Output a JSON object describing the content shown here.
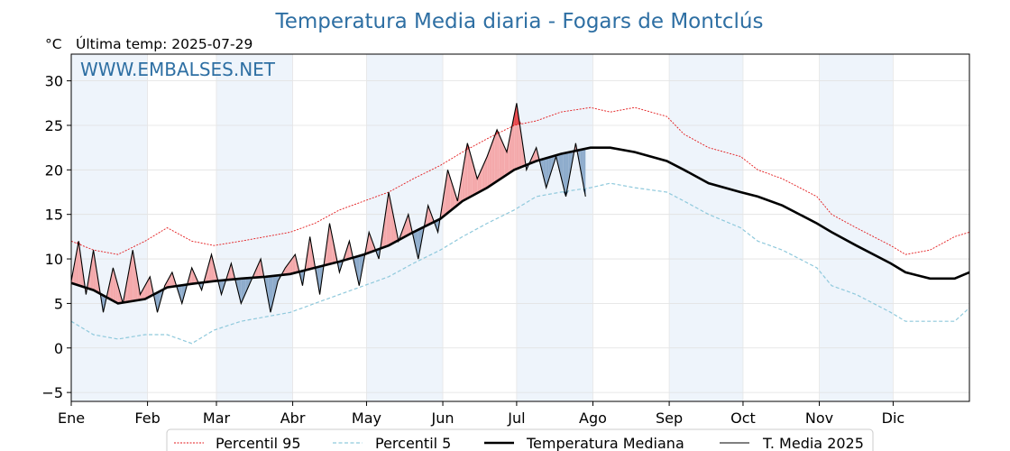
{
  "chart_data": {
    "type": "line",
    "title": "Temperatura Media diaria - Fogars de Montclús",
    "unit_label": "°C",
    "last_temp_label": "Última temp: 2025-07-29",
    "watermark": "WWW.EMBALSES.NET",
    "ylim": [
      -6,
      33
    ],
    "yticks": [
      30,
      25,
      20,
      15,
      10,
      5,
      0,
      -5
    ],
    "ytick_labels": [
      "30",
      "25",
      "20",
      "15",
      "10",
      "5",
      "0",
      "−5"
    ],
    "xlim_days": [
      1,
      366
    ],
    "months": [
      {
        "label": "Ene",
        "start_day": 1,
        "end_day": 31
      },
      {
        "label": "Feb",
        "start_day": 32,
        "end_day": 59
      },
      {
        "label": "Mar",
        "start_day": 60,
        "end_day": 90
      },
      {
        "label": "Abr",
        "start_day": 91,
        "end_day": 120
      },
      {
        "label": "May",
        "start_day": 121,
        "end_day": 151
      },
      {
        "label": "Jun",
        "start_day": 152,
        "end_day": 181
      },
      {
        "label": "Jul",
        "start_day": 182,
        "end_day": 212
      },
      {
        "label": "Ago",
        "start_day": 213,
        "end_day": 243
      },
      {
        "label": "Sep",
        "start_day": 244,
        "end_day": 273
      },
      {
        "label": "Oct",
        "start_day": 274,
        "end_day": 304
      },
      {
        "label": "Nov",
        "start_day": 305,
        "end_day": 334
      },
      {
        "label": "Dic",
        "start_day": 335,
        "end_day": 365
      }
    ],
    "grid": true,
    "legend_position": "bottom-center",
    "legend": [
      {
        "label": "Percentil 95",
        "key": "p95"
      },
      {
        "label": "Percentil 5",
        "key": "p5"
      },
      {
        "label": "Temperatura Mediana",
        "key": "median"
      },
      {
        "label": "T. Media 2025",
        "key": "y2025"
      }
    ],
    "colors": {
      "p95": "#e31a1c",
      "p5": "#8fc9dc",
      "median": "#000000",
      "y2025": "#000000",
      "above_median_fill": "#f4a9ab",
      "above_p95_fill": "#e8474b",
      "below_median_fill": "#8eaccc",
      "below_p5_fill": "#1f4e79",
      "shade": "#eef4fb"
    },
    "series": {
      "median": {
        "x": [
          1,
          10,
          20,
          31,
          40,
          50,
          59,
          70,
          80,
          90,
          100,
          110,
          120,
          130,
          140,
          151,
          160,
          170,
          181,
          190,
          200,
          212,
          220,
          230,
          243,
          250,
          260,
          273,
          280,
          290,
          304,
          310,
          320,
          334,
          340,
          350,
          360,
          366
        ],
        "y": [
          7.3,
          6.5,
          5.0,
          5.5,
          6.8,
          7.2,
          7.5,
          7.8,
          8.0,
          8.3,
          9.0,
          9.7,
          10.5,
          11.5,
          13.0,
          14.5,
          16.5,
          18.0,
          20.0,
          21.0,
          21.8,
          22.5,
          22.5,
          22.0,
          21.0,
          20.0,
          18.5,
          17.5,
          17.0,
          16.0,
          14.0,
          13.0,
          11.5,
          9.5,
          8.5,
          7.8,
          7.8,
          8.5
        ]
      },
      "p95": {
        "x": [
          1,
          10,
          20,
          31,
          40,
          50,
          59,
          70,
          80,
          90,
          100,
          110,
          120,
          130,
          140,
          151,
          160,
          170,
          181,
          190,
          200,
          212,
          220,
          230,
          243,
          250,
          260,
          273,
          280,
          290,
          304,
          310,
          320,
          334,
          340,
          350,
          360,
          366
        ],
        "y": [
          12.0,
          11.0,
          10.5,
          12.0,
          13.5,
          12.0,
          11.5,
          12.0,
          12.5,
          13.0,
          14.0,
          15.5,
          16.5,
          17.5,
          19.0,
          20.5,
          22.0,
          23.5,
          25.0,
          25.5,
          26.5,
          27.0,
          26.5,
          27.0,
          26.0,
          24.0,
          22.5,
          21.5,
          20.0,
          19.0,
          17.0,
          15.0,
          13.5,
          11.5,
          10.5,
          11.0,
          12.5,
          13.0
        ]
      },
      "p5": {
        "x": [
          1,
          10,
          20,
          31,
          40,
          50,
          59,
          70,
          80,
          90,
          100,
          110,
          120,
          130,
          140,
          151,
          160,
          170,
          181,
          190,
          200,
          212,
          220,
          230,
          243,
          250,
          260,
          273,
          280,
          290,
          304,
          310,
          320,
          334,
          340,
          350,
          360,
          366
        ],
        "y": [
          3.0,
          1.5,
          1.0,
          1.5,
          1.5,
          0.5,
          2.0,
          3.0,
          3.5,
          4.0,
          5.0,
          6.0,
          7.0,
          8.0,
          9.5,
          11.0,
          12.5,
          14.0,
          15.5,
          17.0,
          17.5,
          18.0,
          18.5,
          18.0,
          17.5,
          16.5,
          15.0,
          13.5,
          12.0,
          11.0,
          9.0,
          7.0,
          6.0,
          4.0,
          3.0,
          3.0,
          3.0,
          4.5
        ]
      },
      "y2025": {
        "x": [
          1,
          4,
          7,
          10,
          14,
          18,
          22,
          26,
          29,
          33,
          36,
          39,
          42,
          46,
          50,
          54,
          58,
          62,
          66,
          70,
          74,
          78,
          82,
          85,
          88,
          92,
          95,
          98,
          102,
          106,
          110,
          114,
          118,
          122,
          126,
          130,
          134,
          138,
          142,
          146,
          150,
          154,
          158,
          162,
          166,
          170,
          174,
          178,
          182,
          186,
          190,
          194,
          198,
          202,
          206,
          210
        ],
        "y": [
          7.5,
          12.0,
          6.0,
          11.0,
          4.0,
          9.0,
          5.0,
          11.0,
          6.0,
          8.0,
          4.0,
          7.0,
          8.5,
          5.0,
          9.0,
          6.5,
          10.5,
          6.0,
          9.5,
          5.0,
          7.5,
          10.0,
          4.0,
          7.5,
          9.0,
          10.5,
          7.0,
          12.5,
          6.0,
          14.0,
          8.5,
          12.0,
          7.0,
          13.0,
          10.0,
          17.5,
          12.0,
          15.0,
          10.0,
          16.0,
          13.0,
          20.0,
          16.5,
          23.0,
          19.0,
          21.5,
          24.5,
          22.0,
          27.5,
          20.0,
          22.5,
          18.0,
          21.5,
          17.0,
          23.0,
          17.0
        ]
      }
    }
  }
}
